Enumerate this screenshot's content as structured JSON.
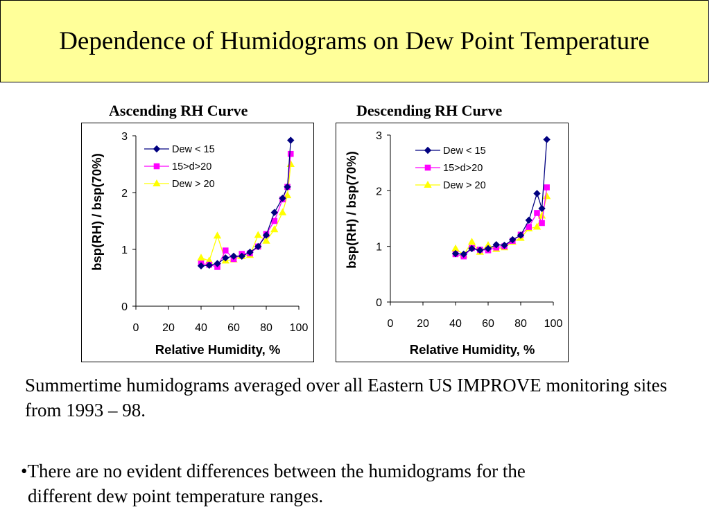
{
  "title": "Dependence of Humidograms on Dew Point Temperature",
  "caption": "Summertime humidograms averaged over all Eastern US IMPROVE monitoring sites from 1993 – 98.",
  "bullet": {
    "marker": "•",
    "line1": "There are no evident differences between the humidograms for the",
    "line2": "different dew point temperature ranges."
  },
  "colors": {
    "dew_lt_15": "#000080",
    "d_15_20": "#ff00ff",
    "dew_gt_20": "#ffff00",
    "title_bg": "#ffff99"
  },
  "chart_data": [
    {
      "type": "line",
      "title": "Ascending RH Curve",
      "xlabel": "Relative Humidity, %",
      "ylabel": "bsp(RH) / bsp(70%)",
      "xlim": [
        0,
        100
      ],
      "ylim": [
        0,
        3
      ],
      "xticks": [
        "0",
        "20",
        "40",
        "60",
        "80",
        "100"
      ],
      "yticks": [
        "0",
        "1",
        "2",
        "3"
      ],
      "grid": false,
      "legend": "top-left",
      "series": [
        {
          "name": "Dew < 15",
          "marker": "diamond",
          "color": "#000080",
          "x": [
            40,
            45,
            50,
            55,
            60,
            65,
            70,
            75,
            80,
            85,
            90,
            93,
            95
          ],
          "y": [
            0.71,
            0.72,
            0.75,
            0.85,
            0.88,
            0.88,
            0.95,
            1.05,
            1.25,
            1.65,
            1.9,
            2.1,
            2.92
          ]
        },
        {
          "name": "15>d>20",
          "marker": "square",
          "color": "#ff00ff",
          "x": [
            40,
            45,
            50,
            55,
            60,
            65,
            70,
            75,
            80,
            85,
            90,
            93,
            95
          ],
          "y": [
            0.75,
            0.73,
            0.69,
            0.98,
            0.83,
            0.92,
            0.93,
            1.05,
            1.27,
            1.5,
            1.88,
            2.1,
            2.68
          ]
        },
        {
          "name": "Dew > 20",
          "marker": "triangle",
          "color": "#ffff00",
          "x": [
            40,
            45,
            50,
            55,
            60,
            65,
            70,
            75,
            80,
            85,
            90,
            93,
            95
          ],
          "y": [
            0.85,
            0.8,
            1.24,
            0.8,
            0.82,
            0.88,
            0.9,
            1.25,
            1.15,
            1.35,
            1.65,
            1.95,
            2.5
          ]
        }
      ]
    },
    {
      "type": "line",
      "title": "Descending RH Curve",
      "xlabel": "Relative Humidity, %",
      "ylabel": "bsp(RH) / bsp(70%)",
      "xlim": [
        0,
        100
      ],
      "ylim": [
        0,
        3
      ],
      "xticks": [
        "0",
        "20",
        "40",
        "60",
        "80",
        "100"
      ],
      "yticks": [
        "0",
        "1",
        "2",
        "3"
      ],
      "grid": false,
      "legend": "top-right",
      "series": [
        {
          "name": "Dew < 15",
          "marker": "diamond",
          "color": "#000080",
          "x": [
            40,
            45,
            50,
            55,
            60,
            65,
            70,
            75,
            80,
            85,
            90,
            93,
            96
          ],
          "y": [
            0.87,
            0.86,
            0.96,
            0.93,
            0.96,
            1.03,
            1.02,
            1.12,
            1.2,
            1.47,
            1.95,
            1.68,
            2.92
          ]
        },
        {
          "name": "15>d>20",
          "marker": "square",
          "color": "#ff00ff",
          "x": [
            40,
            45,
            50,
            55,
            60,
            65,
            70,
            75,
            80,
            85,
            90,
            93,
            96
          ],
          "y": [
            0.86,
            0.82,
            0.97,
            0.94,
            0.93,
            0.98,
            1.0,
            1.1,
            1.21,
            1.35,
            1.6,
            1.42,
            2.06
          ]
        },
        {
          "name": "Dew > 20",
          "marker": "triangle",
          "color": "#ffff00",
          "x": [
            40,
            45,
            50,
            55,
            60,
            65,
            70,
            75,
            80,
            85,
            90,
            93,
            96
          ],
          "y": [
            0.96,
            0.85,
            1.08,
            0.9,
            1.02,
            0.95,
            0.98,
            1.08,
            1.15,
            1.32,
            1.35,
            1.55,
            1.9
          ]
        }
      ]
    }
  ]
}
